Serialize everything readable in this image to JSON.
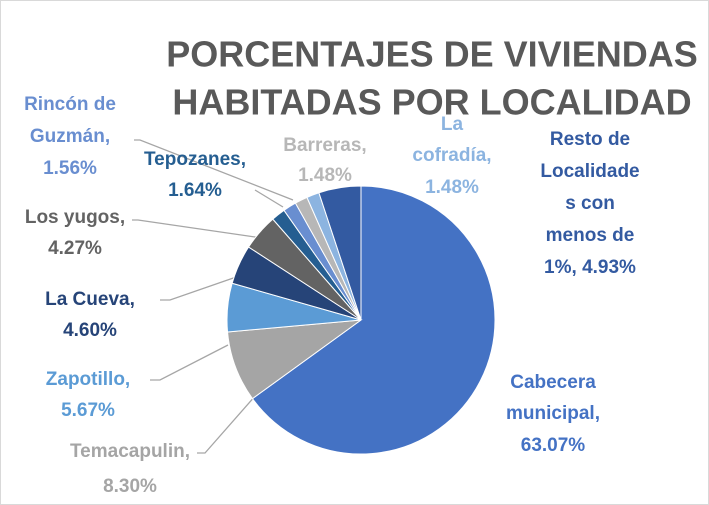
{
  "chart_data": {
    "type": "pie",
    "title": [
      "PORCENTAJES DE VIVIENDAS",
      "HABITADAS POR LOCALIDAD"
    ],
    "values": [
      63.07,
      8.3,
      5.67,
      4.6,
      4.27,
      1.64,
      1.56,
      1.48,
      1.48,
      4.93
    ],
    "value_labels": [
      [
        "Cabecera",
        "municipal,",
        "63.07%"
      ],
      [
        "Temacapulin,",
        "8.30%"
      ],
      [
        "Zapotillo,",
        "5.67%"
      ],
      [
        "La Cueva,",
        "4.60%"
      ],
      [
        "Los yugos,",
        "4.27%"
      ],
      [
        "Tepozanes,",
        "1.64%"
      ],
      [
        "Rincón de",
        "Guzmán,",
        "1.56%"
      ],
      [
        "Barreras,",
        "1.48%"
      ],
      [
        "La",
        "cofradía,",
        "1.48%"
      ],
      [
        "Resto de",
        "Localidade",
        "s con",
        "menos de",
        "1%, 4.93%"
      ]
    ],
    "colors": [
      "#4472c4",
      "#a5a5a5",
      "#5b9bd5",
      "#264478",
      "#636363",
      "#255e91",
      "#698ed0",
      "#b7b7b7",
      "#8cb4e0",
      "#335aa1"
    ]
  }
}
